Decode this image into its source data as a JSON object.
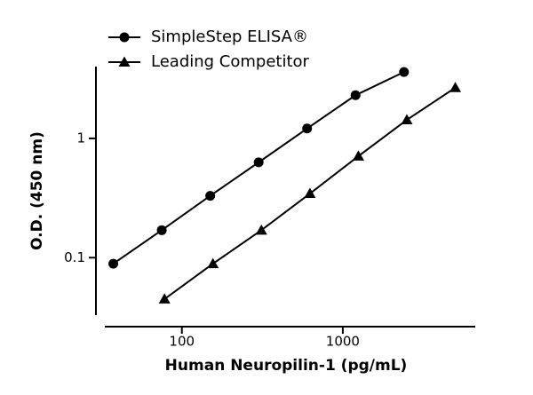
{
  "chart_data": {
    "type": "line",
    "x_label": "Human Neuropilin-1 (pg/mL)",
    "y_label": "O.D. (450 nm)",
    "xscale": "log",
    "yscale": "log",
    "xlim": [
      30,
      7000
    ],
    "ylim": [
      0.033,
      4
    ],
    "xticks": [
      100,
      1000
    ],
    "yticks": [
      0.1,
      1
    ],
    "series": [
      {
        "name": "SimpleStep ELISA®",
        "color": "#000000",
        "marker": "circle",
        "x": [
          37.5,
          75,
          150,
          300,
          600,
          1200,
          2400
        ],
        "values": [
          0.089,
          0.17,
          0.33,
          0.63,
          1.21,
          2.3,
          3.6
        ]
      },
      {
        "name": "Leading Competitor",
        "color": "#000000",
        "marker": "triangle",
        "x": [
          78,
          156,
          312,
          625,
          1250,
          2500,
          5000
        ],
        "values": [
          0.045,
          0.089,
          0.17,
          0.345,
          0.71,
          1.43,
          2.66
        ]
      }
    ]
  }
}
